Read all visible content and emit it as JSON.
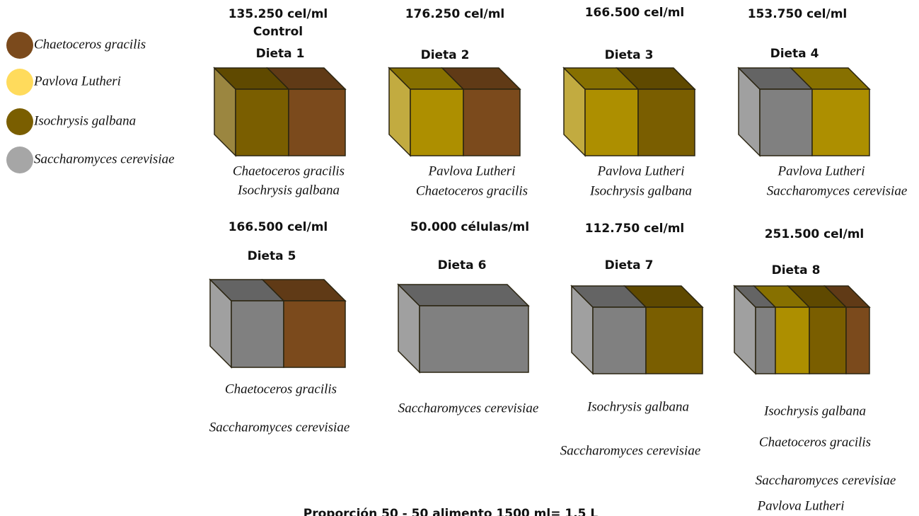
{
  "legend": {
    "items": [
      {
        "name": "Chaetoceros gracilis",
        "color": "#7b4a1c"
      },
      {
        "name": "Pavlova Lutheri",
        "color": "#ffdb5c"
      },
      {
        "name": "Isochrysis galbana",
        "color": "#7a5e00"
      },
      {
        "name": "Saccharomyces cerevisiae",
        "color": "#a6a6a6"
      }
    ]
  },
  "diets": [
    {
      "concentration": "135.250 cel/ml",
      "note": "Control",
      "title": "Dieta 1",
      "species": [
        "Chaetoceros gracilis",
        "Isochrysis galbana"
      ]
    },
    {
      "concentration": "176.250 cel/ml",
      "title": "Dieta 2",
      "species": [
        "Pavlova Lutheri",
        "Chaetoceros gracilis"
      ]
    },
    {
      "concentration": "166.500 cel/ml",
      "title": "Dieta 3",
      "species": [
        "Pavlova Lutheri",
        "Isochrysis galbana"
      ]
    },
    {
      "concentration": "153.750 cel/ml",
      "title": "Dieta 4",
      "species": [
        "Pavlova Lutheri",
        "Saccharomyces cerevisiae"
      ]
    },
    {
      "concentration": "166.500 cel/ml",
      "title": "Dieta 5",
      "species": [
        "Chaetoceros gracilis",
        "Saccharomyces cerevisiae"
      ]
    },
    {
      "concentration": "50.000 células/ml",
      "title": "Dieta 6",
      "species": [
        "Saccharomyces cerevisiae"
      ]
    },
    {
      "concentration": "112.750 cel/ml",
      "title": "Dieta 7",
      "species": [
        "Isochrysis galbana",
        "Saccharomyces cerevisiae"
      ]
    },
    {
      "concentration": "251.500 cel/ml",
      "title": "Dieta 8",
      "species": [
        "Isochrysis galbana",
        "Chaetoceros gracilis",
        "Saccharomyces cerevisiae",
        "Pavlova Lutheri"
      ]
    }
  ],
  "footer": "Proporción 50 - 50 alimento 1500 ml= 1.5 L"
}
